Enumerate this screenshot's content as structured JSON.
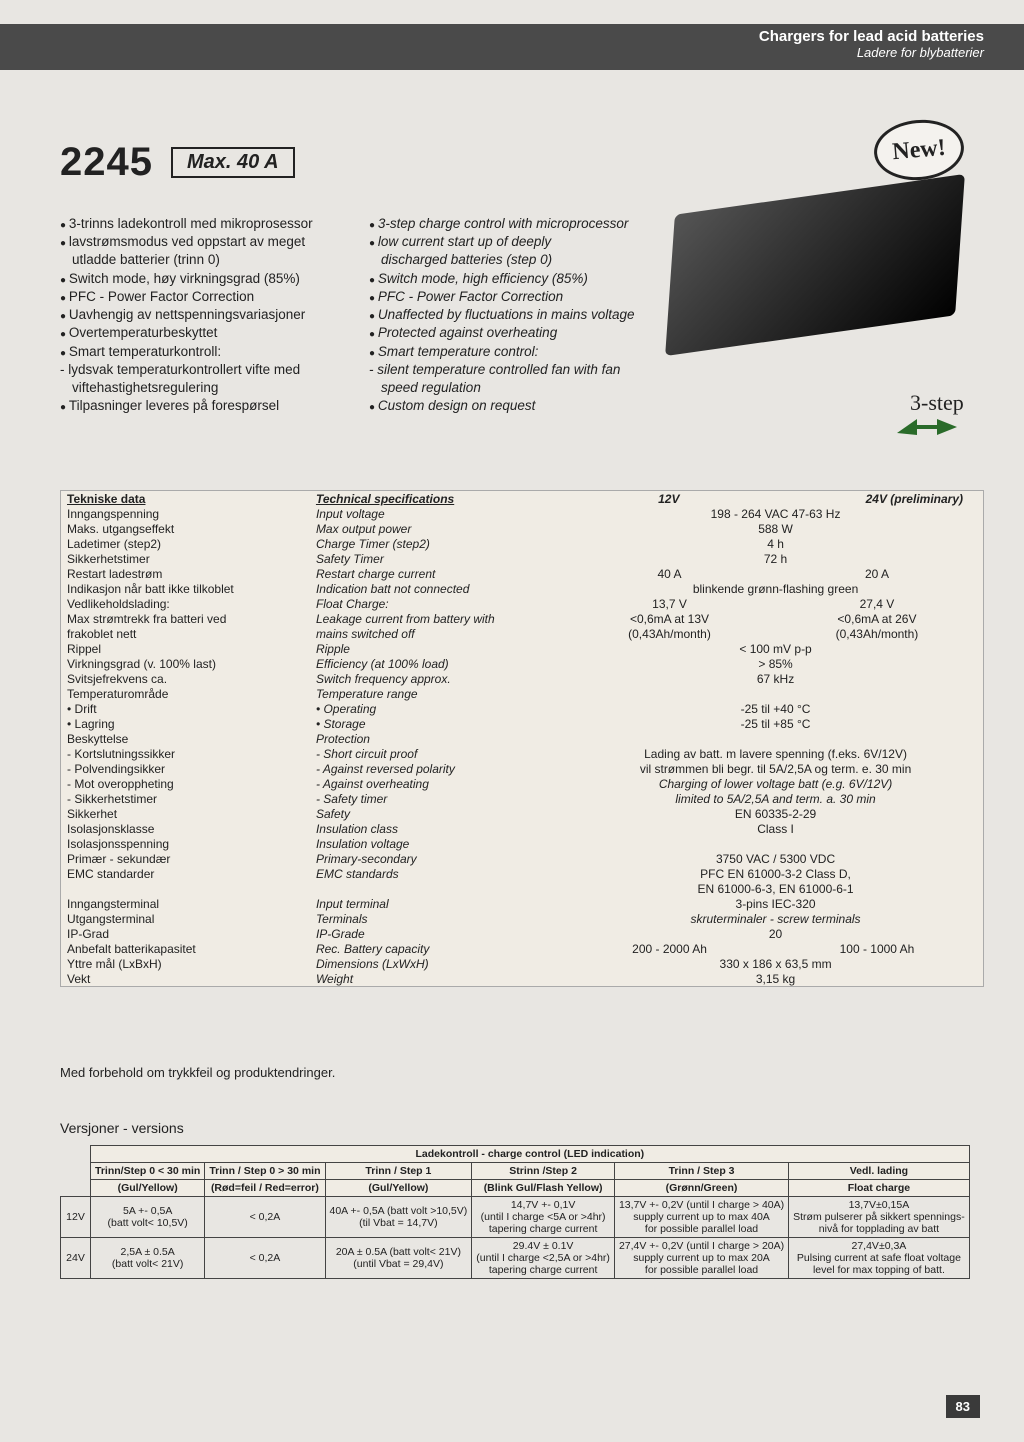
{
  "header": {
    "line1": "Chargers for lead acid batteries",
    "line2": "Ladere for blybatterier"
  },
  "title": {
    "model": "2245",
    "max": "Max. 40 A",
    "new": "New!"
  },
  "step_label": "3-step",
  "features_no": [
    {
      "t": "bullet",
      "v": "3-trinns ladekontroll med mikroprosessor"
    },
    {
      "t": "bullet",
      "v": "lavstrømsmodus ved oppstart av meget"
    },
    {
      "t": "cont",
      "v": "utladde batterier (trinn 0)"
    },
    {
      "t": "bullet",
      "v": "Switch mode, høy virkningsgrad (85%)"
    },
    {
      "t": "bullet",
      "v": "PFC - Power Factor Correction"
    },
    {
      "t": "bullet",
      "v": "Uavhengig av nettspenningsvariasjoner"
    },
    {
      "t": "bullet",
      "v": "Overtemperaturbeskyttet"
    },
    {
      "t": "bullet",
      "v": "Smart temperaturkontroll:"
    },
    {
      "t": "dash",
      "v": "lydsvak temperaturkontrollert vifte med"
    },
    {
      "t": "cont",
      "v": "viftehastighetsregulering"
    },
    {
      "t": "bullet",
      "v": "Tilpasninger leveres på forespørsel"
    }
  ],
  "features_en": [
    {
      "t": "bullet",
      "v": "3-step charge control with microprocessor"
    },
    {
      "t": "bullet",
      "v": "low current start up of deeply"
    },
    {
      "t": "cont",
      "v": "discharged batteries (step 0)"
    },
    {
      "t": "bullet",
      "v": "Switch mode, high efficiency (85%)"
    },
    {
      "t": "bullet",
      "v": "PFC - Power Factor Correction"
    },
    {
      "t": "bullet",
      "v": "Unaffected by fluctuations in mains voltage"
    },
    {
      "t": "bullet",
      "v": "Protected against overheating"
    },
    {
      "t": "bullet",
      "v": "Smart temperature control:"
    },
    {
      "t": "dash",
      "v": "silent temperature controlled fan with fan"
    },
    {
      "t": "cont",
      "v": "speed regulation"
    },
    {
      "t": "bullet",
      "v": "Custom design on request"
    }
  ],
  "spec_header": {
    "c1": "Tekniske data",
    "c2": "Technical specifications",
    "c3": "12V",
    "c4": "24V (preliminary)"
  },
  "specs": [
    [
      "Inngangspenning",
      "Input voltage",
      "198 - 264 VAC 47-63 Hz",
      ""
    ],
    [
      "Maks. utgangseffekt",
      "Max output power",
      "588 W",
      ""
    ],
    [
      "Ladetimer (step2)",
      "Charge Timer (step2)",
      "4 h",
      ""
    ],
    [
      "Sikkerhetstimer",
      "Safety Timer",
      "72 h",
      ""
    ],
    [
      "Restart ladestrøm",
      "Restart charge current",
      "40 A",
      "20 A"
    ],
    [
      "Indikasjon når batt ikke tilkoblet",
      "Indication batt not connected",
      "blinkende grønn-flashing green",
      ""
    ],
    [
      "Vedlikeholdslading:",
      "Float Charge:",
      "13,7 V",
      "27,4 V"
    ],
    [
      "Max strømtrekk fra batteri ved",
      "Leakage current from battery with",
      "<0,6mA at 13V",
      "<0,6mA at 26V"
    ],
    [
      "frakoblet nett",
      "mains switched off",
      "(0,43Ah/month)",
      "(0,43Ah/month)"
    ],
    [
      "Rippel",
      "Ripple",
      "< 100 mV p-p",
      ""
    ],
    [
      "Virkningsgrad (v. 100% last)",
      "Efficiency (at 100% load)",
      "> 85%",
      ""
    ],
    [
      "Svitsjefrekvens ca.",
      "Switch frequency approx.",
      "67 kHz",
      ""
    ],
    [
      "Temperaturområde",
      "Temperature range",
      "",
      ""
    ],
    [
      "• Drift",
      "• Operating",
      "-25 til +40 °C",
      ""
    ],
    [
      "• Lagring",
      "• Storage",
      "-25 til +85 °C",
      ""
    ],
    [
      "Beskyttelse",
      "Protection",
      "",
      ""
    ],
    [
      "- Kortslutningssikker",
      "- Short circuit proof",
      "Lading av batt. m lavere spenning (f.eks. 6V/12V)",
      ""
    ],
    [
      "- Polvendingsikker",
      "- Against reversed polarity",
      "vil strømmen bli begr. til 5A/2,5A og term. e. 30 min",
      ""
    ],
    [
      "- Mot overoppheting",
      "- Against overheating",
      "Charging of lower voltage batt (e.g. 6V/12V)",
      "i"
    ],
    [
      "- Sikkerhetstimer",
      "- Safety timer",
      "limited to 5A/2,5A and term. a. 30 min",
      "i"
    ],
    [
      "Sikkerhet",
      "Safety",
      "EN 60335-2-29",
      ""
    ],
    [
      "Isolasjonsklasse",
      "Insulation class",
      "Class I",
      ""
    ],
    [
      "Isolasjonsspenning",
      "Insulation voltage",
      "",
      ""
    ],
    [
      "Primær - sekundær",
      "Primary-secondary",
      "3750 VAC / 5300 VDC",
      ""
    ],
    [
      "EMC standarder",
      "EMC standards",
      "PFC EN 61000-3-2 Class D,",
      ""
    ],
    [
      "",
      "",
      "EN 61000-6-3, EN 61000-6-1",
      ""
    ],
    [
      "Inngangsterminal",
      "Input terminal",
      "3-pins IEC-320",
      ""
    ],
    [
      "Utgangsterminal",
      "Terminals",
      "skruterminaler - screw terminals",
      "i"
    ],
    [
      "IP-Grad",
      "IP-Grade",
      "20",
      ""
    ],
    [
      "Anbefalt batterikapasitet",
      "Rec. Battery capacity",
      "200 - 2000 Ah",
      "100 - 1000 Ah"
    ],
    [
      "Yttre mål (LxBxH)",
      "Dimensions (LxWxH)",
      "330 x 186 x 63,5 mm",
      ""
    ],
    [
      "Vekt",
      "Weight",
      "3,15 kg",
      ""
    ]
  ],
  "note": "Med forbehold om trykkfeil og produktendringer.",
  "versions_label": "Versjoner - versions",
  "vtable": {
    "title": "Ladekontroll - charge control (LED indication)",
    "head1": [
      "",
      "Trinn/Step 0 < 30 min",
      "Trinn / Step 0 > 30 min",
      "Trinn / Step 1",
      "Strinn /Step 2",
      "Trinn / Step 3",
      "Vedl. lading"
    ],
    "head2": [
      "",
      "(Gul/Yellow)",
      "(Rød=feil / Red=error)",
      "(Gul/Yellow)",
      "(Blink Gul/Flash Yellow)",
      "(Grønn/Green)",
      "Float charge"
    ],
    "rows": [
      [
        "12V",
        "5A +- 0,5A\n(batt volt< 10,5V)",
        "< 0,2A",
        "40A +- 0,5A (batt volt >10,5V)\n(til Vbat = 14,7V)",
        "14,7V +- 0,1V\n(until I charge <5A or >4hr)\ntapering charge current",
        "13,7V +- 0,2V (until I charge > 40A)\nsupply current up to max 40A\nfor possible parallel load",
        "13,7V±0,15A\nStrøm pulserer på sikkert spennings-\nnivå for topplading av batt"
      ],
      [
        "24V",
        "2,5A ± 0.5A\n(batt volt< 21V)",
        "< 0,2A",
        "20A ± 0.5A (batt volt< 21V)\n(until Vbat = 29,4V)",
        "29.4V ± 0.1V\n(until I charge <2,5A or >4hr)\ntapering charge current",
        "27,4V +- 0,2V (until I charge > 20A)\nsupply current up to max 20A\nfor possible parallel load",
        "27,4V±0,3A\nPulsing current at safe float voltage\nlevel for max topping of batt."
      ]
    ]
  },
  "page_num": "83"
}
